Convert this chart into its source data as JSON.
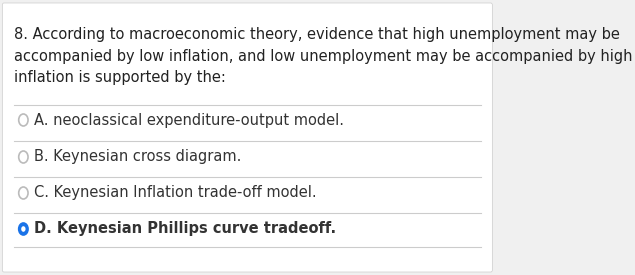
{
  "question": "8. According to macroeconomic theory, evidence that high unemployment may be\naccompanied by low inflation, and low unemployment may be accompanied by high\ninflation is supported by the:",
  "options": [
    {
      "letter": "A.",
      "text": "neoclassical expenditure-output model.",
      "selected": false
    },
    {
      "letter": "B.",
      "text": "Keynesian cross diagram.",
      "selected": false
    },
    {
      "letter": "C.",
      "text": "Keynesian Inflation trade-off model.",
      "selected": false
    },
    {
      "letter": "D.",
      "text": "Keynesian Phillips curve tradeoff.",
      "selected": true
    }
  ],
  "bg_color": "#f0f0f0",
  "card_color": "#ffffff",
  "text_color": "#222222",
  "option_text_color": "#333333",
  "circle_unselected_color": "#bbbbbb",
  "circle_selected_color": "#1a73e8",
  "divider_color": "#cccccc",
  "question_fontsize": 10.5,
  "option_fontsize": 10.5
}
